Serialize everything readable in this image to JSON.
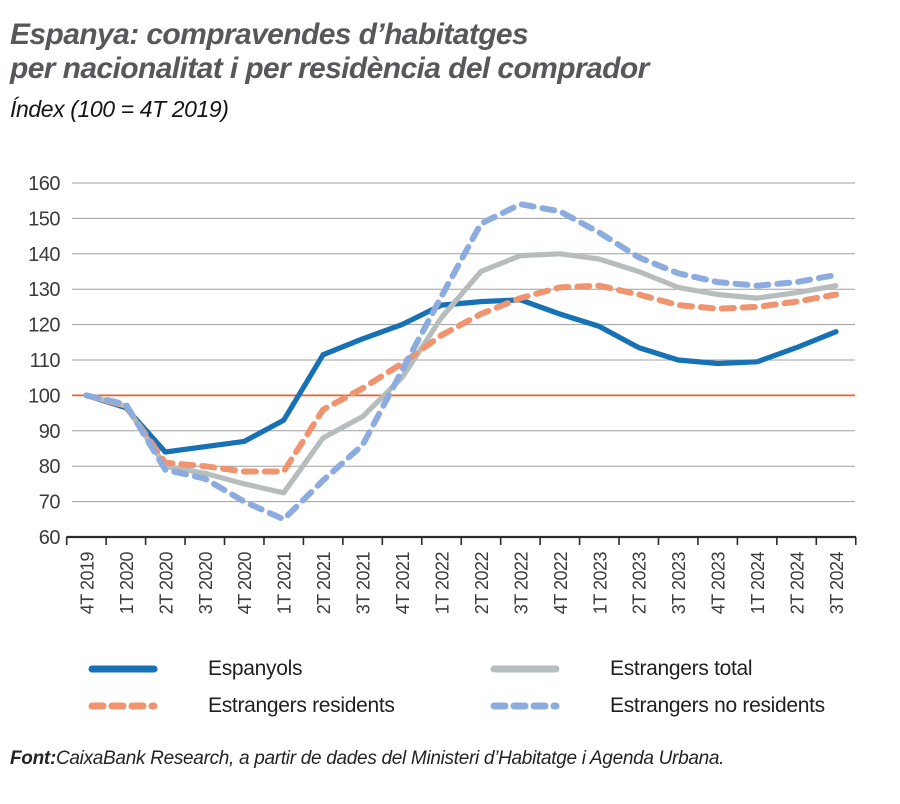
{
  "header": {
    "title_line1": "Espanya: compravendes d’habitatges",
    "title_line2": "per nacionalitat i per residència del comprador",
    "subtitle": "Índex (100 = 4T 2019)"
  },
  "chart_data": {
    "type": "line",
    "title": "Espanya: compravendes d’habitatges per nacionalitat i per residència del comprador",
    "subtitle": "Índex (100 = 4T 2019)",
    "ylim": [
      60,
      160
    ],
    "y_ticks": [
      60,
      70,
      80,
      90,
      100,
      110,
      120,
      130,
      140,
      150,
      160
    ],
    "grid": "horizontal",
    "legend_position": "bottom",
    "reference_line": {
      "value": 100,
      "color": "#e7622d"
    },
    "categories": [
      "4T 2019",
      "1T 2020",
      "2T 2020",
      "3T 2020",
      "4T 2020",
      "1T 2021",
      "2T 2021",
      "3T 2021",
      "4T 2021",
      "1T 2022",
      "2T 2022",
      "3T 2022",
      "4T 2022",
      "1T 2023",
      "2T 2023",
      "3T 2023",
      "4T 2023",
      "1T 2024",
      "2T 2024",
      "3T 2024"
    ],
    "series": [
      {
        "name": "Espanyols",
        "style": "solid",
        "color": "#1771b5",
        "values": [
          100,
          96.5,
          84,
          85.5,
          87,
          93,
          111.5,
          116,
          120,
          125.5,
          126.5,
          127,
          123,
          119.5,
          113.5,
          110,
          109,
          109.5,
          113.5,
          118
        ]
      },
      {
        "name": "Estrangers total",
        "style": "solid",
        "color": "#b7bdbd",
        "values": [
          100,
          97,
          80,
          78,
          75,
          72.5,
          88,
          94,
          105,
          122,
          135,
          139.5,
          140,
          138.5,
          135,
          130.5,
          128.5,
          127.5,
          129,
          131
        ]
      },
      {
        "name": "Estrangers residents",
        "style": "dashed",
        "color": "#f0936f",
        "values": [
          100,
          97,
          81,
          80,
          78.5,
          78.5,
          96,
          102,
          109,
          117,
          123,
          127.5,
          130.5,
          131,
          128.5,
          125.5,
          124.5,
          125,
          126.5,
          128.5
        ]
      },
      {
        "name": "Estrangers no residents",
        "style": "dashed",
        "color": "#8cacdf",
        "values": [
          100,
          97.5,
          79,
          76.5,
          70,
          65,
          76,
          86,
          107,
          128,
          148.5,
          154,
          152,
          146,
          139,
          134.5,
          132,
          131,
          132,
          134
        ]
      }
    ]
  },
  "colors": {
    "grid": "#9f9f9f",
    "axis": "#2b2b2b",
    "tick_label": "#3b3b3d"
  },
  "footer": {
    "source_label": "Font:",
    "source_text": "CaixaBank Research, a partir de dades del Ministeri d’Habitatge i Agenda Urbana."
  }
}
